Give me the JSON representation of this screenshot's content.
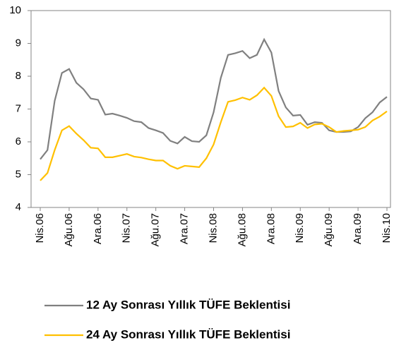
{
  "chart_data": {
    "type": "line",
    "categories": [
      "Nis.06",
      null,
      null,
      null,
      "Ağu.06",
      null,
      null,
      null,
      "Ara.06",
      null,
      null,
      null,
      "Nis.07",
      null,
      null,
      null,
      "Ağu.07",
      null,
      null,
      null,
      "Ara.07",
      null,
      null,
      null,
      "Nis.08",
      null,
      null,
      null,
      "Ağu.08",
      null,
      null,
      null,
      "Ara.08",
      null,
      null,
      null,
      "Nis.09",
      null,
      null,
      null,
      "Ağu.09",
      null,
      null,
      null,
      "Ara.09",
      null,
      null,
      null,
      "Nis.10"
    ],
    "series": [
      {
        "name": "12 Ay Sonrası Yıllık TÜFE Beklentisi",
        "color": "#808080",
        "values": [
          5.47,
          5.75,
          7.25,
          8.1,
          8.22,
          7.8,
          7.6,
          7.32,
          7.28,
          6.83,
          6.86,
          6.8,
          6.73,
          6.63,
          6.6,
          6.42,
          6.35,
          6.27,
          6.03,
          5.95,
          6.15,
          6.02,
          6.0,
          6.2,
          6.9,
          7.95,
          8.65,
          8.7,
          8.77,
          8.55,
          8.65,
          9.12,
          8.72,
          7.55,
          7.05,
          6.8,
          6.82,
          6.52,
          6.6,
          6.58,
          6.35,
          6.3,
          6.3,
          6.32,
          6.45,
          6.72,
          6.9,
          7.2,
          7.37
        ]
      },
      {
        "name": "24 Ay Sonrası Yıllık TÜFE Beklentisi",
        "color": "#ffc000",
        "values": [
          4.82,
          5.05,
          5.75,
          6.35,
          6.48,
          6.25,
          6.05,
          5.82,
          5.8,
          5.53,
          5.53,
          5.58,
          5.63,
          5.55,
          5.52,
          5.47,
          5.43,
          5.43,
          5.27,
          5.18,
          5.27,
          5.25,
          5.23,
          5.5,
          5.92,
          6.6,
          7.22,
          7.27,
          7.35,
          7.28,
          7.42,
          7.65,
          7.4,
          6.78,
          6.45,
          6.47,
          6.58,
          6.42,
          6.53,
          6.55,
          6.45,
          6.3,
          6.33,
          6.35,
          6.37,
          6.45,
          6.65,
          6.77,
          6.93
        ]
      }
    ],
    "ylim": [
      4,
      10
    ],
    "yticks": [
      4,
      5,
      6,
      7,
      8,
      9,
      10
    ],
    "grid": false
  }
}
